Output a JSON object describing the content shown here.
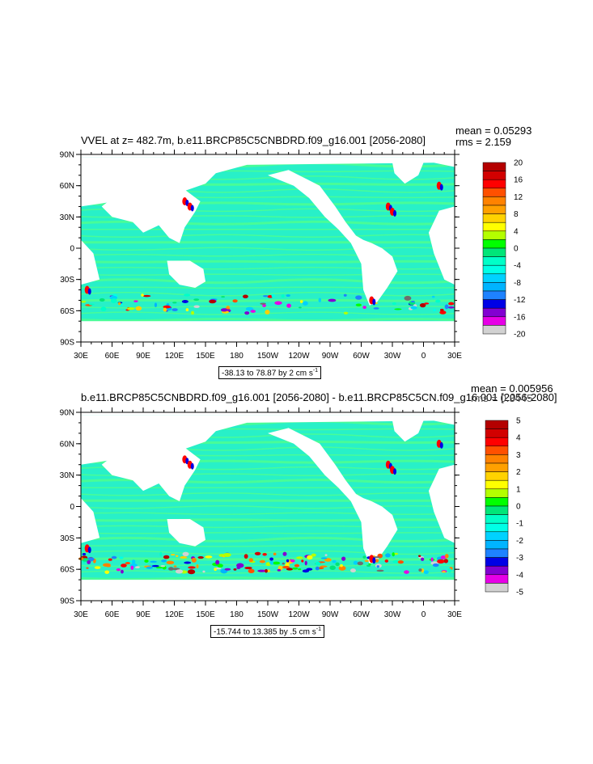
{
  "panels": [
    {
      "title": "VVEL at z= 482.7m, b.e11.BRCP85C5CNBDRD.f09_g16.001 [2056-2080]",
      "mean_text": "mean = 0.05293",
      "rms_text": "rms = 2.159",
      "info": "-38.13 to 78.87 by 2 cm s",
      "info_sup": "-1",
      "colorbar_labels": [
        "20",
        "16",
        "12",
        "8",
        "4",
        "0",
        "-4",
        "-8",
        "-12",
        "-16",
        "-20"
      ]
    },
    {
      "title": "b.e11.BRCP85C5CNBDRD.f09_g16.001 [2056-2080] - b.e11.BRCP85C5CN.f09_g16.001 [2056-2080]",
      "mean_text": "mean = 0.005956",
      "rms_text": "rms = 0.3445",
      "info": "-15.744 to 13.385 by .5 cm s",
      "info_sup": "-1",
      "colorbar_labels": [
        "5",
        "4",
        "3",
        "2",
        "1",
        "0",
        "-1",
        "-2",
        "-3",
        "-4",
        "-5"
      ]
    }
  ],
  "axes": {
    "lat_labels": [
      "90N",
      "60N",
      "30N",
      "0",
      "30S",
      "60S",
      "90S"
    ],
    "lon_labels": [
      "30E",
      "60E",
      "90E",
      "120E",
      "150E",
      "180",
      "150W",
      "120W",
      "90W",
      "60W",
      "30W",
      "0",
      "30E"
    ]
  },
  "colors": {
    "levels": [
      "#6e6e6e",
      "#d2d2d2",
      "#e600e6",
      "#8200d2",
      "#0000e6",
      "#1e82ff",
      "#00b4ff",
      "#00d2ff",
      "#00ffe6",
      "#00ffc8",
      "#00e678",
      "#00ff00",
      "#b4ff00",
      "#ffff00",
      "#ffd200",
      "#ffa000",
      "#ff8200",
      "#ff5000",
      "#ff0000",
      "#d20000",
      "#b40000"
    ],
    "ocean": "#28f0c8",
    "ocean_alt": "#50ff8c",
    "land": "#ffffff"
  }
}
